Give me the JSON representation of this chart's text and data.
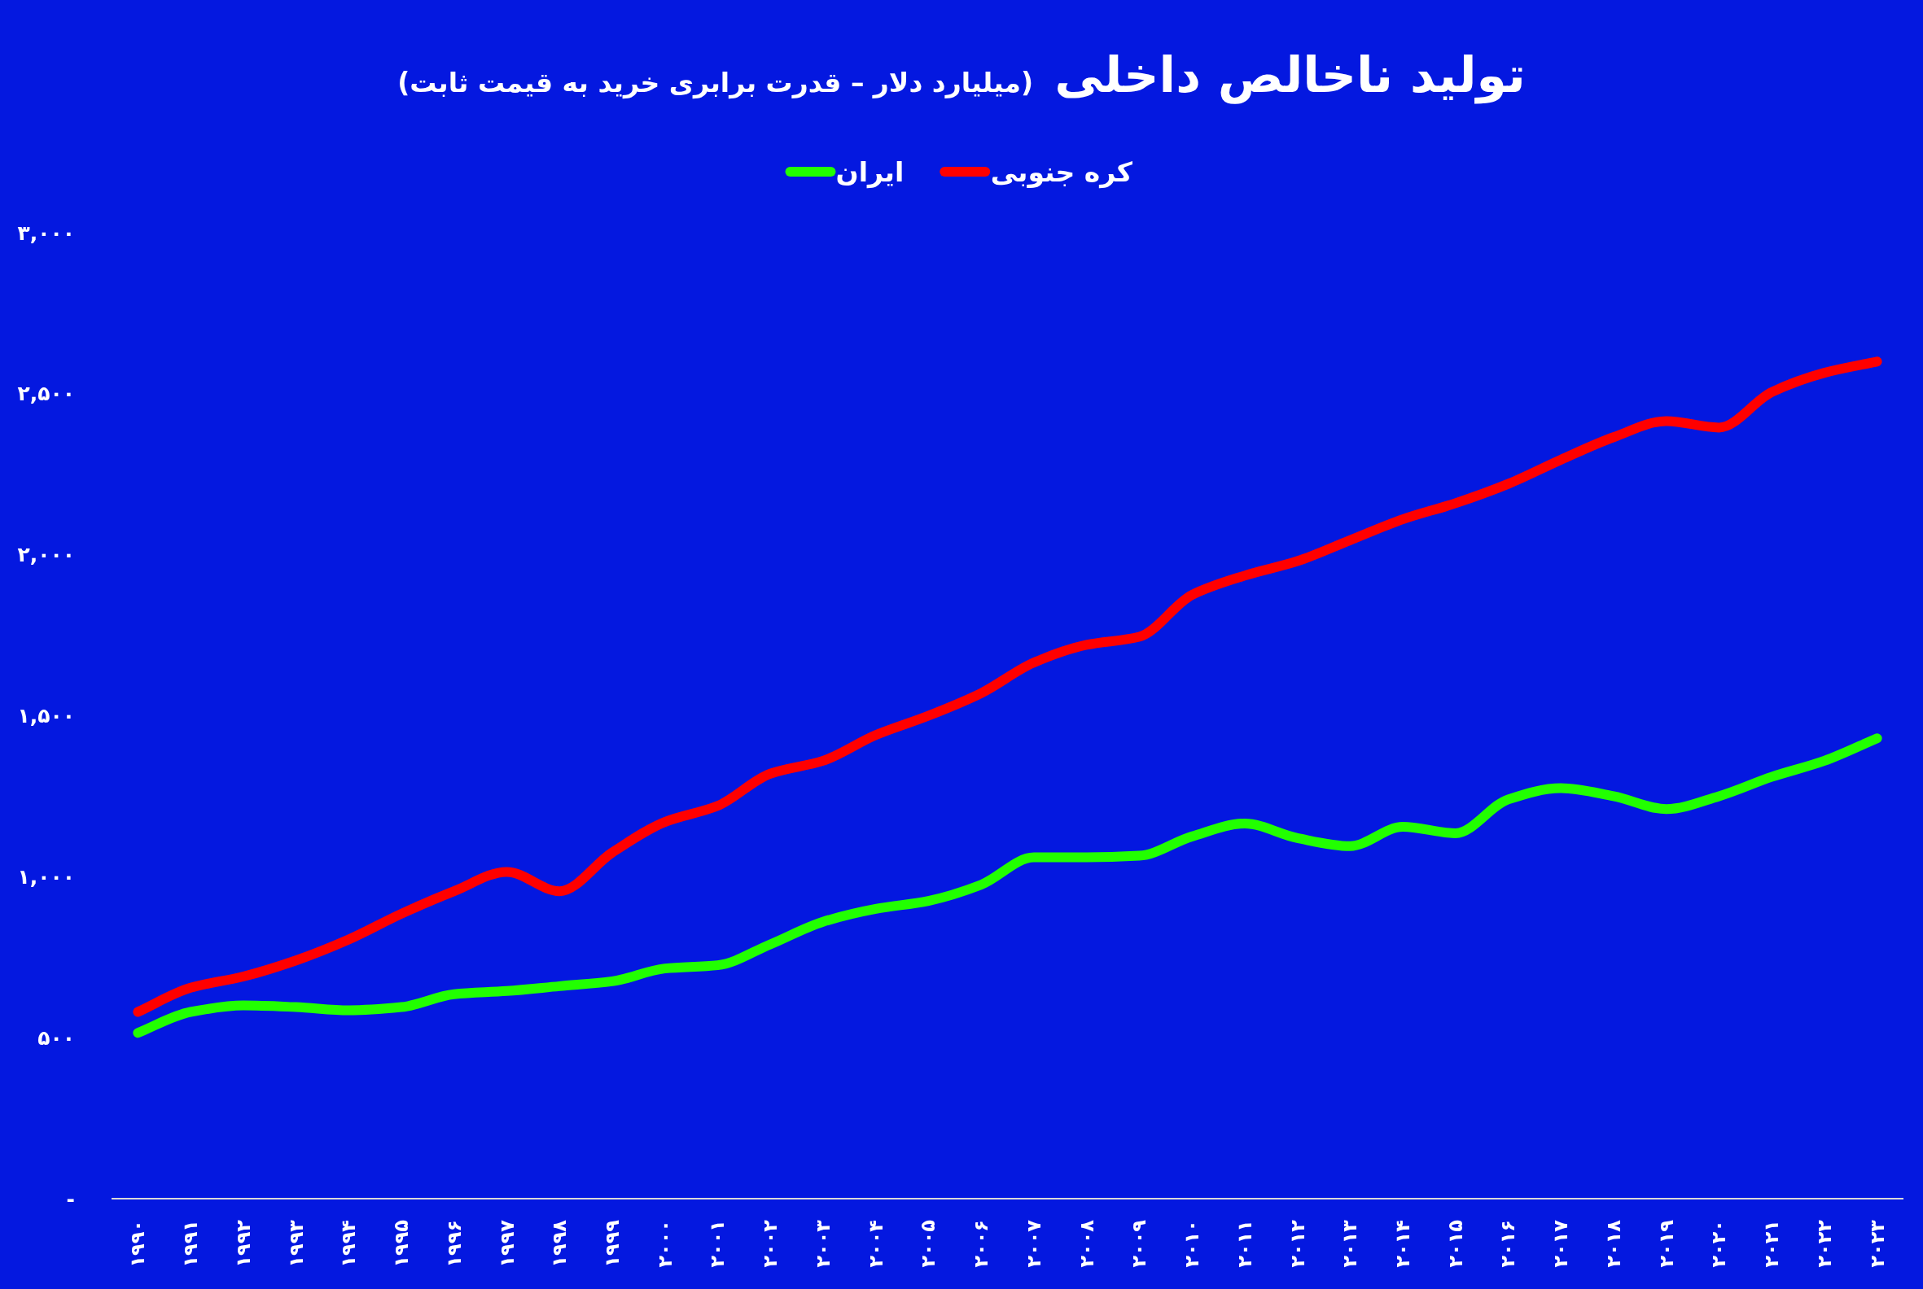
{
  "chart_data": {
    "type": "line",
    "title": "تولید ناخالص داخلی",
    "subtitle": "(میلیارد دلار – قدرت برابری خرید به قیمت ثابت)",
    "categories": [
      "۱۹۹۰",
      "۱۹۹۱",
      "۱۹۹۲",
      "۱۹۹۳",
      "۱۹۹۴",
      "۱۹۹۵",
      "۱۹۹۶",
      "۱۹۹۷",
      "۱۹۹۸",
      "۱۹۹۹",
      "۲۰۰۰",
      "۲۰۰۱",
      "۲۰۰۲",
      "۲۰۰۳",
      "۲۰۰۴",
      "۲۰۰۵",
      "۲۰۰۶",
      "۲۰۰۷",
      "۲۰۰۸",
      "۲۰۰۹",
      "۲۰۱۰",
      "۲۰۱۱",
      "۲۰۱۲",
      "۲۰۱۳",
      "۲۰۱۴",
      "۲۰۱۵",
      "۲۰۱۶",
      "۲۰۱۷",
      "۲۰۱۸",
      "۲۰۱۹",
      "۲۰۲۰",
      "۲۰۲۱",
      "۲۰۲۲",
      "۲۰۲۳"
    ],
    "series": [
      {
        "name": "کره جنوبی",
        "color": "#ff0000",
        "values": [
          580,
          655,
          690,
          740,
          805,
          885,
          955,
          1015,
          955,
          1075,
          1170,
          1220,
          1320,
          1360,
          1440,
          1500,
          1570,
          1665,
          1720,
          1745,
          1875,
          1935,
          1980,
          2045,
          2110,
          2160,
          2220,
          2295,
          2365,
          2415,
          2395,
          2505,
          2565,
          2600
        ]
      },
      {
        "name": "ایران",
        "color": "#22ff00",
        "values": [
          515,
          580,
          600,
          595,
          585,
          595,
          635,
          645,
          660,
          675,
          715,
          725,
          790,
          860,
          900,
          925,
          975,
          1060,
          1060,
          1065,
          1125,
          1165,
          1120,
          1095,
          1155,
          1135,
          1240,
          1275,
          1250,
          1210,
          1250,
          1310,
          1360,
          1430
        ]
      }
    ],
    "ylim": [
      0,
      3000
    ],
    "yticks": [
      {
        "value": 0,
        "label": "-"
      },
      {
        "value": 500,
        "label": "۵۰۰"
      },
      {
        "value": 1000,
        "label": "۱,۰۰۰"
      },
      {
        "value": 1500,
        "label": "۱,۵۰۰"
      },
      {
        "value": 2000,
        "label": "۲,۰۰۰"
      },
      {
        "value": 2500,
        "label": "۲,۵۰۰"
      },
      {
        "value": 3000,
        "label": "۳,۰۰۰"
      }
    ],
    "legend": "top"
  }
}
